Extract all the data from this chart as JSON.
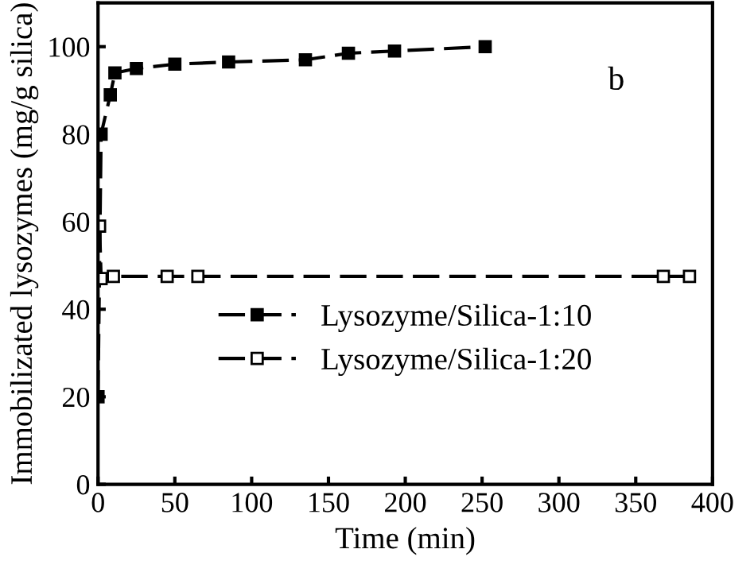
{
  "chart_data": {
    "type": "line",
    "xlabel": "Time (min)",
    "ylabel": "Immobilizated lysozymes (mg/g silica)",
    "annotations": [
      "b"
    ],
    "series": [
      {
        "name": "Lysozyme/Silica-1:10",
        "color": "#000000",
        "marker": "square",
        "x": [
          0,
          2,
          8,
          11,
          25,
          50,
          85,
          135,
          163,
          193,
          252
        ],
        "values": [
          20,
          80,
          89,
          94,
          95,
          96,
          96.5,
          97,
          98.5,
          99,
          100
        ]
      },
      {
        "name": "Lysozyme/Silica-1:20",
        "color": "#000000",
        "marker": "square_open",
        "x": [
          1,
          2,
          10,
          45,
          65,
          368,
          385
        ],
        "values": [
          59,
          47,
          47.5,
          47.5,
          47.5,
          47.5,
          47.5
        ]
      }
    ],
    "line_style": "dashed",
    "xlim": [
      0,
      400
    ],
    "xticks": [
      0,
      50,
      100,
      150,
      200,
      250,
      300,
      350,
      400
    ],
    "ylim": [
      0,
      110
    ],
    "yticks": [
      0,
      20,
      40,
      60,
      80,
      100
    ],
    "grid": false,
    "legend": "center"
  }
}
